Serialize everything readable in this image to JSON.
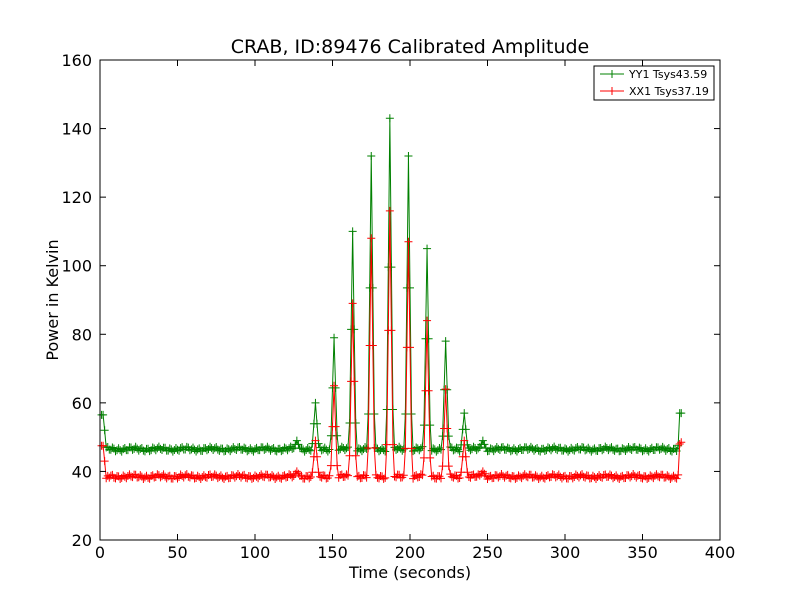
{
  "chart_data": {
    "type": "line",
    "title": "CRAB, ID:89476 Calibrated Amplitude",
    "xlabel": "Time (seconds)",
    "ylabel": "Power in Kelvin",
    "xlim": [
      0,
      400
    ],
    "ylim": [
      20,
      160
    ],
    "xticks": [
      "0",
      "50",
      "100",
      "150",
      "200",
      "250",
      "300",
      "350",
      "400"
    ],
    "yticks": [
      "20",
      "40",
      "60",
      "80",
      "100",
      "120",
      "140",
      "160"
    ],
    "grid": false,
    "legend_position": "top-right",
    "marker": "plus",
    "series": [
      {
        "name": "YY1 Tsys43.59",
        "color": "#008000",
        "baseline": 46.5,
        "start": [
          [
            1,
            56.5
          ],
          [
            2,
            56.5
          ],
          [
            3,
            52
          ],
          [
            4,
            47
          ]
        ],
        "end": [
          [
            373,
            47.5
          ],
          [
            374,
            57
          ],
          [
            375,
            57
          ]
        ],
        "peaks": [
          [
            127,
            49
          ],
          [
            139,
            60
          ],
          [
            151,
            79
          ],
          [
            163,
            110
          ],
          [
            175,
            132
          ],
          [
            187,
            143
          ],
          [
            199,
            132
          ],
          [
            211,
            105
          ],
          [
            223,
            78
          ],
          [
            235,
            57
          ],
          [
            247,
            49
          ]
        ]
      },
      {
        "name": "XX1 Tsys37.19",
        "color": "#ff0000",
        "baseline": 38.5,
        "start": [
          [
            1,
            47.5
          ],
          [
            2,
            47.5
          ],
          [
            3,
            43
          ],
          [
            4,
            38
          ]
        ],
        "end": [
          [
            373,
            39
          ],
          [
            374,
            48
          ],
          [
            375,
            48.5
          ]
        ],
        "peaks": [
          [
            127,
            40
          ],
          [
            139,
            49
          ],
          [
            151,
            65
          ],
          [
            163,
            89
          ],
          [
            175,
            108
          ],
          [
            187,
            116
          ],
          [
            199,
            107
          ],
          [
            211,
            84
          ],
          [
            223,
            64
          ],
          [
            235,
            49
          ],
          [
            247,
            40
          ]
        ]
      }
    ]
  }
}
